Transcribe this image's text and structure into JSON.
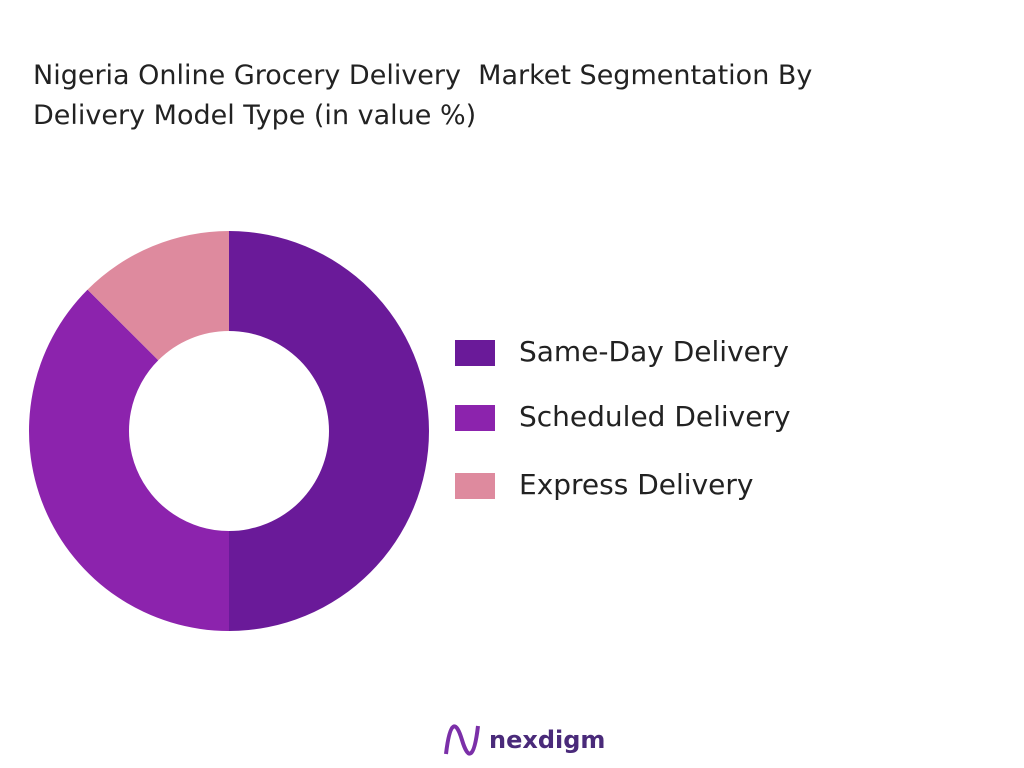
{
  "chart_data": {
    "type": "donut",
    "title": "Nigeria Online Grocery Delivery  Market Segmentation By Delivery Model Type (in value %)",
    "categories": [
      "Same-Day Delivery",
      "Scheduled Delivery",
      "Express Delivery"
    ],
    "values": [
      50,
      37.5,
      12.5
    ],
    "colors": [
      "#6a1a99",
      "#8c23ad",
      "#de8a9e"
    ],
    "legend": "right"
  },
  "footer": {
    "logo_text": "nexdigm"
  }
}
